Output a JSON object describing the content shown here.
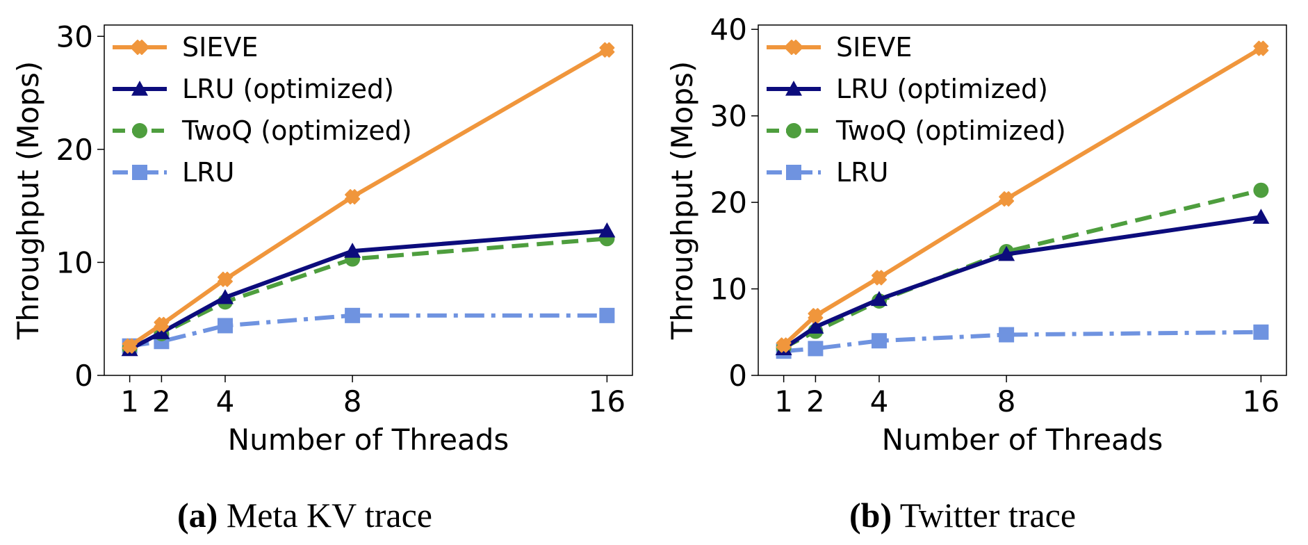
{
  "colors": {
    "SIEVE": "#f0963c",
    "LRU (optimized)": "#0c0c7c",
    "TwoQ (optimized)": "#4e9e3e",
    "LRU": "#6f93e0"
  },
  "legend_placement": "top-left",
  "chart_data": [
    {
      "type": "line",
      "xlabel": "Number of Threads",
      "ylabel": "Throughput (Mops)",
      "x": [
        1,
        2,
        4,
        8,
        16
      ],
      "xticks": [
        "1",
        "2",
        "4",
        "8",
        "16"
      ],
      "yticks": [
        "0",
        "10",
        "20",
        "30"
      ],
      "ylim": [
        0,
        31
      ],
      "xlim": [
        0.2,
        16.8
      ],
      "grid": false,
      "caption": {
        "tag": "(a)",
        "text": "Meta KV trace"
      },
      "series": [
        {
          "name": "SIEVE",
          "marker": "x",
          "dash": "solid",
          "values": [
            2.6,
            4.5,
            8.5,
            15.8,
            28.8
          ]
        },
        {
          "name": "LRU (optimized)",
          "marker": "triangle",
          "dash": "solid",
          "values": [
            2.3,
            3.8,
            6.9,
            11.0,
            12.8
          ]
        },
        {
          "name": "TwoQ (optimized)",
          "marker": "circle",
          "dash": "dashed",
          "values": [
            2.4,
            3.7,
            6.5,
            10.3,
            12.1
          ]
        },
        {
          "name": "LRU",
          "marker": "square",
          "dash": "dashdot",
          "values": [
            2.6,
            3.0,
            4.4,
            5.3,
            5.3
          ]
        }
      ]
    },
    {
      "type": "line",
      "xlabel": "Number of Threads",
      "ylabel": "Throughput (Mops)",
      "x": [
        1,
        2,
        4,
        8,
        16
      ],
      "xticks": [
        "1",
        "2",
        "4",
        "8",
        "16"
      ],
      "yticks": [
        "0",
        "10",
        "20",
        "30",
        "40"
      ],
      "ylim": [
        0,
        40.5
      ],
      "xlim": [
        0.2,
        16.8
      ],
      "grid": false,
      "caption": {
        "tag": "(b)",
        "text": "Twitter trace"
      },
      "series": [
        {
          "name": "SIEVE",
          "marker": "x",
          "dash": "solid",
          "values": [
            3.5,
            6.9,
            11.3,
            20.4,
            37.8
          ]
        },
        {
          "name": "LRU (optimized)",
          "marker": "triangle",
          "dash": "solid",
          "values": [
            3.1,
            5.6,
            8.8,
            14.0,
            18.3
          ]
        },
        {
          "name": "TwoQ (optimized)",
          "marker": "circle",
          "dash": "dashed",
          "values": [
            3.2,
            5.1,
            8.6,
            14.3,
            21.4
          ]
        },
        {
          "name": "LRU",
          "marker": "square",
          "dash": "dashdot",
          "values": [
            2.8,
            3.1,
            4.0,
            4.7,
            5.0
          ]
        }
      ]
    }
  ]
}
